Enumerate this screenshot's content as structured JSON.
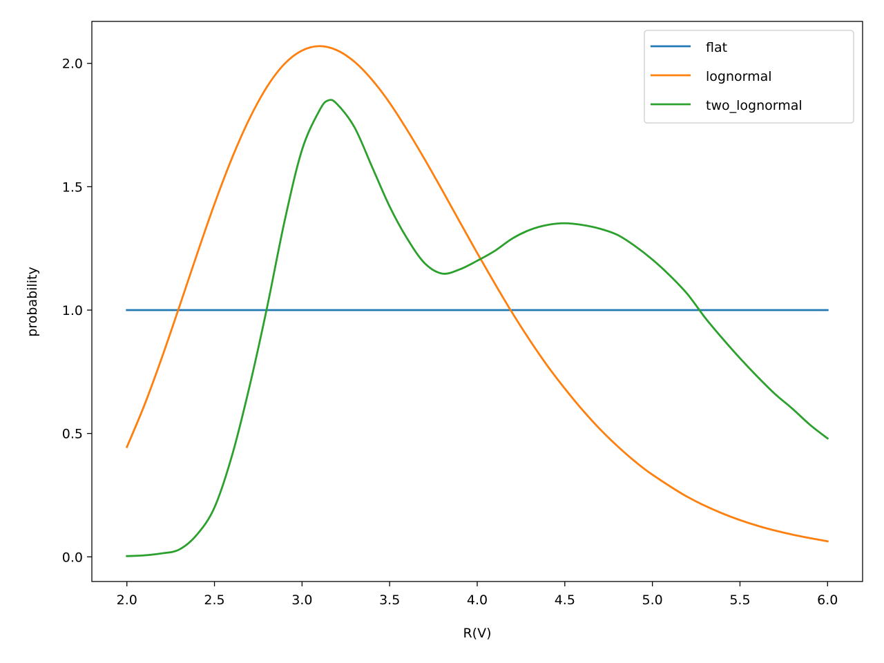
{
  "chart_data": {
    "type": "line",
    "title": "",
    "xlabel": "R(V)",
    "ylabel": "probability",
    "xlim": [
      1.8,
      6.2
    ],
    "ylim": [
      -0.1,
      2.17
    ],
    "xticks": [
      2.0,
      2.5,
      3.0,
      3.5,
      4.0,
      4.5,
      5.0,
      5.5,
      6.0
    ],
    "xtick_labels": [
      "2.0",
      "2.5",
      "3.0",
      "3.5",
      "4.0",
      "4.5",
      "5.0",
      "5.5",
      "6.0"
    ],
    "yticks": [
      0.0,
      0.5,
      1.0,
      1.5,
      2.0
    ],
    "ytick_labels": [
      "0.0",
      "0.5",
      "1.0",
      "1.5",
      "2.0"
    ],
    "grid": false,
    "legend_position": "top-right",
    "series": [
      {
        "name": "flat",
        "color": "#1f77b4",
        "x": [
          2.0,
          6.0
        ],
        "y": [
          1.0,
          1.0
        ]
      },
      {
        "name": "lognormal",
        "color": "#ff7f0e",
        "x": [
          2.0,
          2.1,
          2.2,
          2.3,
          2.4,
          2.5,
          2.6,
          2.7,
          2.8,
          2.9,
          3.0,
          3.1,
          3.2,
          3.3,
          3.4,
          3.5,
          3.6,
          3.7,
          3.8,
          3.9,
          4.0,
          4.1,
          4.2,
          4.3,
          4.4,
          4.5,
          4.6,
          4.7,
          4.8,
          4.9,
          5.0,
          5.2,
          5.4,
          5.6,
          5.8,
          6.0
        ],
        "y": [
          0.445,
          0.615,
          0.808,
          1.015,
          1.226,
          1.43,
          1.616,
          1.776,
          1.905,
          1.998,
          2.052,
          2.07,
          2.053,
          2.006,
          1.933,
          1.84,
          1.73,
          1.611,
          1.486,
          1.358,
          1.231,
          1.108,
          0.989,
          0.878,
          0.775,
          0.682,
          0.596,
          0.518,
          0.449,
          0.387,
          0.333,
          0.243,
          0.176,
          0.126,
          0.09,
          0.063
        ]
      },
      {
        "name": "two_lognormal",
        "color": "#2ca02c",
        "x": [
          2.0,
          2.1,
          2.2,
          2.3,
          2.4,
          2.5,
          2.6,
          2.7,
          2.8,
          2.9,
          3.0,
          3.1,
          3.15,
          3.2,
          3.3,
          3.4,
          3.5,
          3.6,
          3.7,
          3.8,
          3.9,
          4.0,
          4.1,
          4.2,
          4.3,
          4.4,
          4.5,
          4.6,
          4.7,
          4.8,
          4.9,
          5.0,
          5.1,
          5.2,
          5.3,
          5.4,
          5.5,
          5.6,
          5.7,
          5.8,
          5.9,
          6.0
        ],
        "y": [
          0.003,
          0.006,
          0.014,
          0.03,
          0.09,
          0.2,
          0.41,
          0.69,
          1.01,
          1.36,
          1.65,
          1.81,
          1.85,
          1.835,
          1.74,
          1.58,
          1.42,
          1.29,
          1.19,
          1.148,
          1.165,
          1.2,
          1.24,
          1.29,
          1.325,
          1.345,
          1.352,
          1.345,
          1.33,
          1.305,
          1.26,
          1.205,
          1.14,
          1.065,
          0.97,
          0.885,
          0.805,
          0.73,
          0.66,
          0.6,
          0.535,
          0.48
        ]
      }
    ]
  }
}
